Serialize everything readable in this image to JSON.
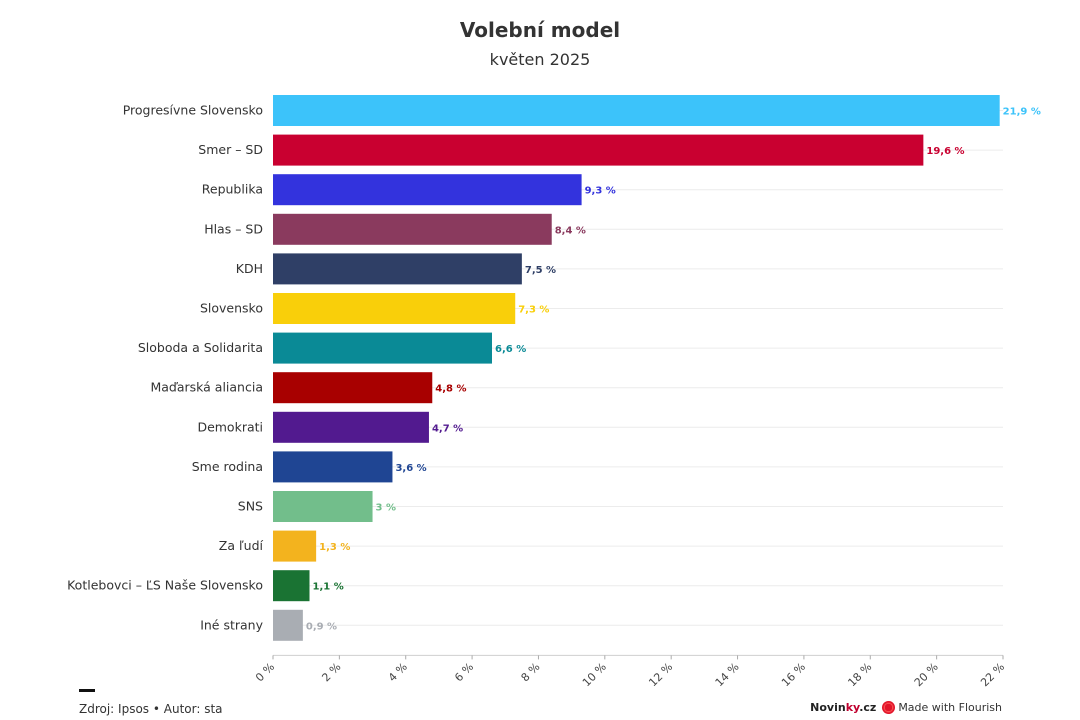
{
  "title": "Volební model",
  "subtitle": "květen 2025",
  "chart_data": {
    "type": "bar",
    "orientation": "horizontal",
    "categories": [
      "Progresívne Slovensko",
      "Smer – SD",
      "Republika",
      "Hlas – SD",
      "KDH",
      "Slovensko",
      "Sloboda a Solidarita",
      "Maďarská aliancia",
      "Demokrati",
      "Sme rodina",
      "SNS",
      "Za ľudí",
      "Kotlebovci – ĽS Naše Slovensko",
      "Iné strany"
    ],
    "values": [
      21.9,
      19.6,
      9.3,
      8.4,
      7.5,
      7.3,
      6.6,
      4.8,
      4.7,
      3.6,
      3,
      1.3,
      1.1,
      0.9
    ],
    "value_labels": [
      "21,9 %",
      "19,6 %",
      "9,3 %",
      "8,4 %",
      "7,5 %",
      "7,3 %",
      "6,6 %",
      "4,8 %",
      "4,7 %",
      "3,6 %",
      "3 %",
      "1,3 %",
      "1,1 %",
      "0,9 %"
    ],
    "colors": [
      "#3cc3fa",
      "#c90030",
      "#3333dd",
      "#8a3a5e",
      "#2f3f66",
      "#f9cf0a",
      "#0a8a96",
      "#a80000",
      "#521a8f",
      "#1f4593",
      "#72be8b",
      "#f3b31e",
      "#1a7333",
      "#a9adb3"
    ],
    "xlim": [
      0,
      22
    ],
    "xticks": [
      0,
      2,
      4,
      6,
      8,
      10,
      12,
      14,
      16,
      18,
      20,
      22
    ],
    "xtick_labels": [
      "0 %",
      "2 %",
      "4 %",
      "6 %",
      "8 %",
      "10 %",
      "12 %",
      "14 %",
      "16 %",
      "18 %",
      "20 %",
      "22 %"
    ],
    "grid": true,
    "legend": "none"
  },
  "footer": {
    "source": "Zdroj: Ipsos • Autor: sta",
    "brand_main": "Novin",
    "brand_accent": "ky",
    "brand_tld": ".cz",
    "flourish": "Made with Flourish",
    "flourish_icon": "flourish-icon"
  }
}
